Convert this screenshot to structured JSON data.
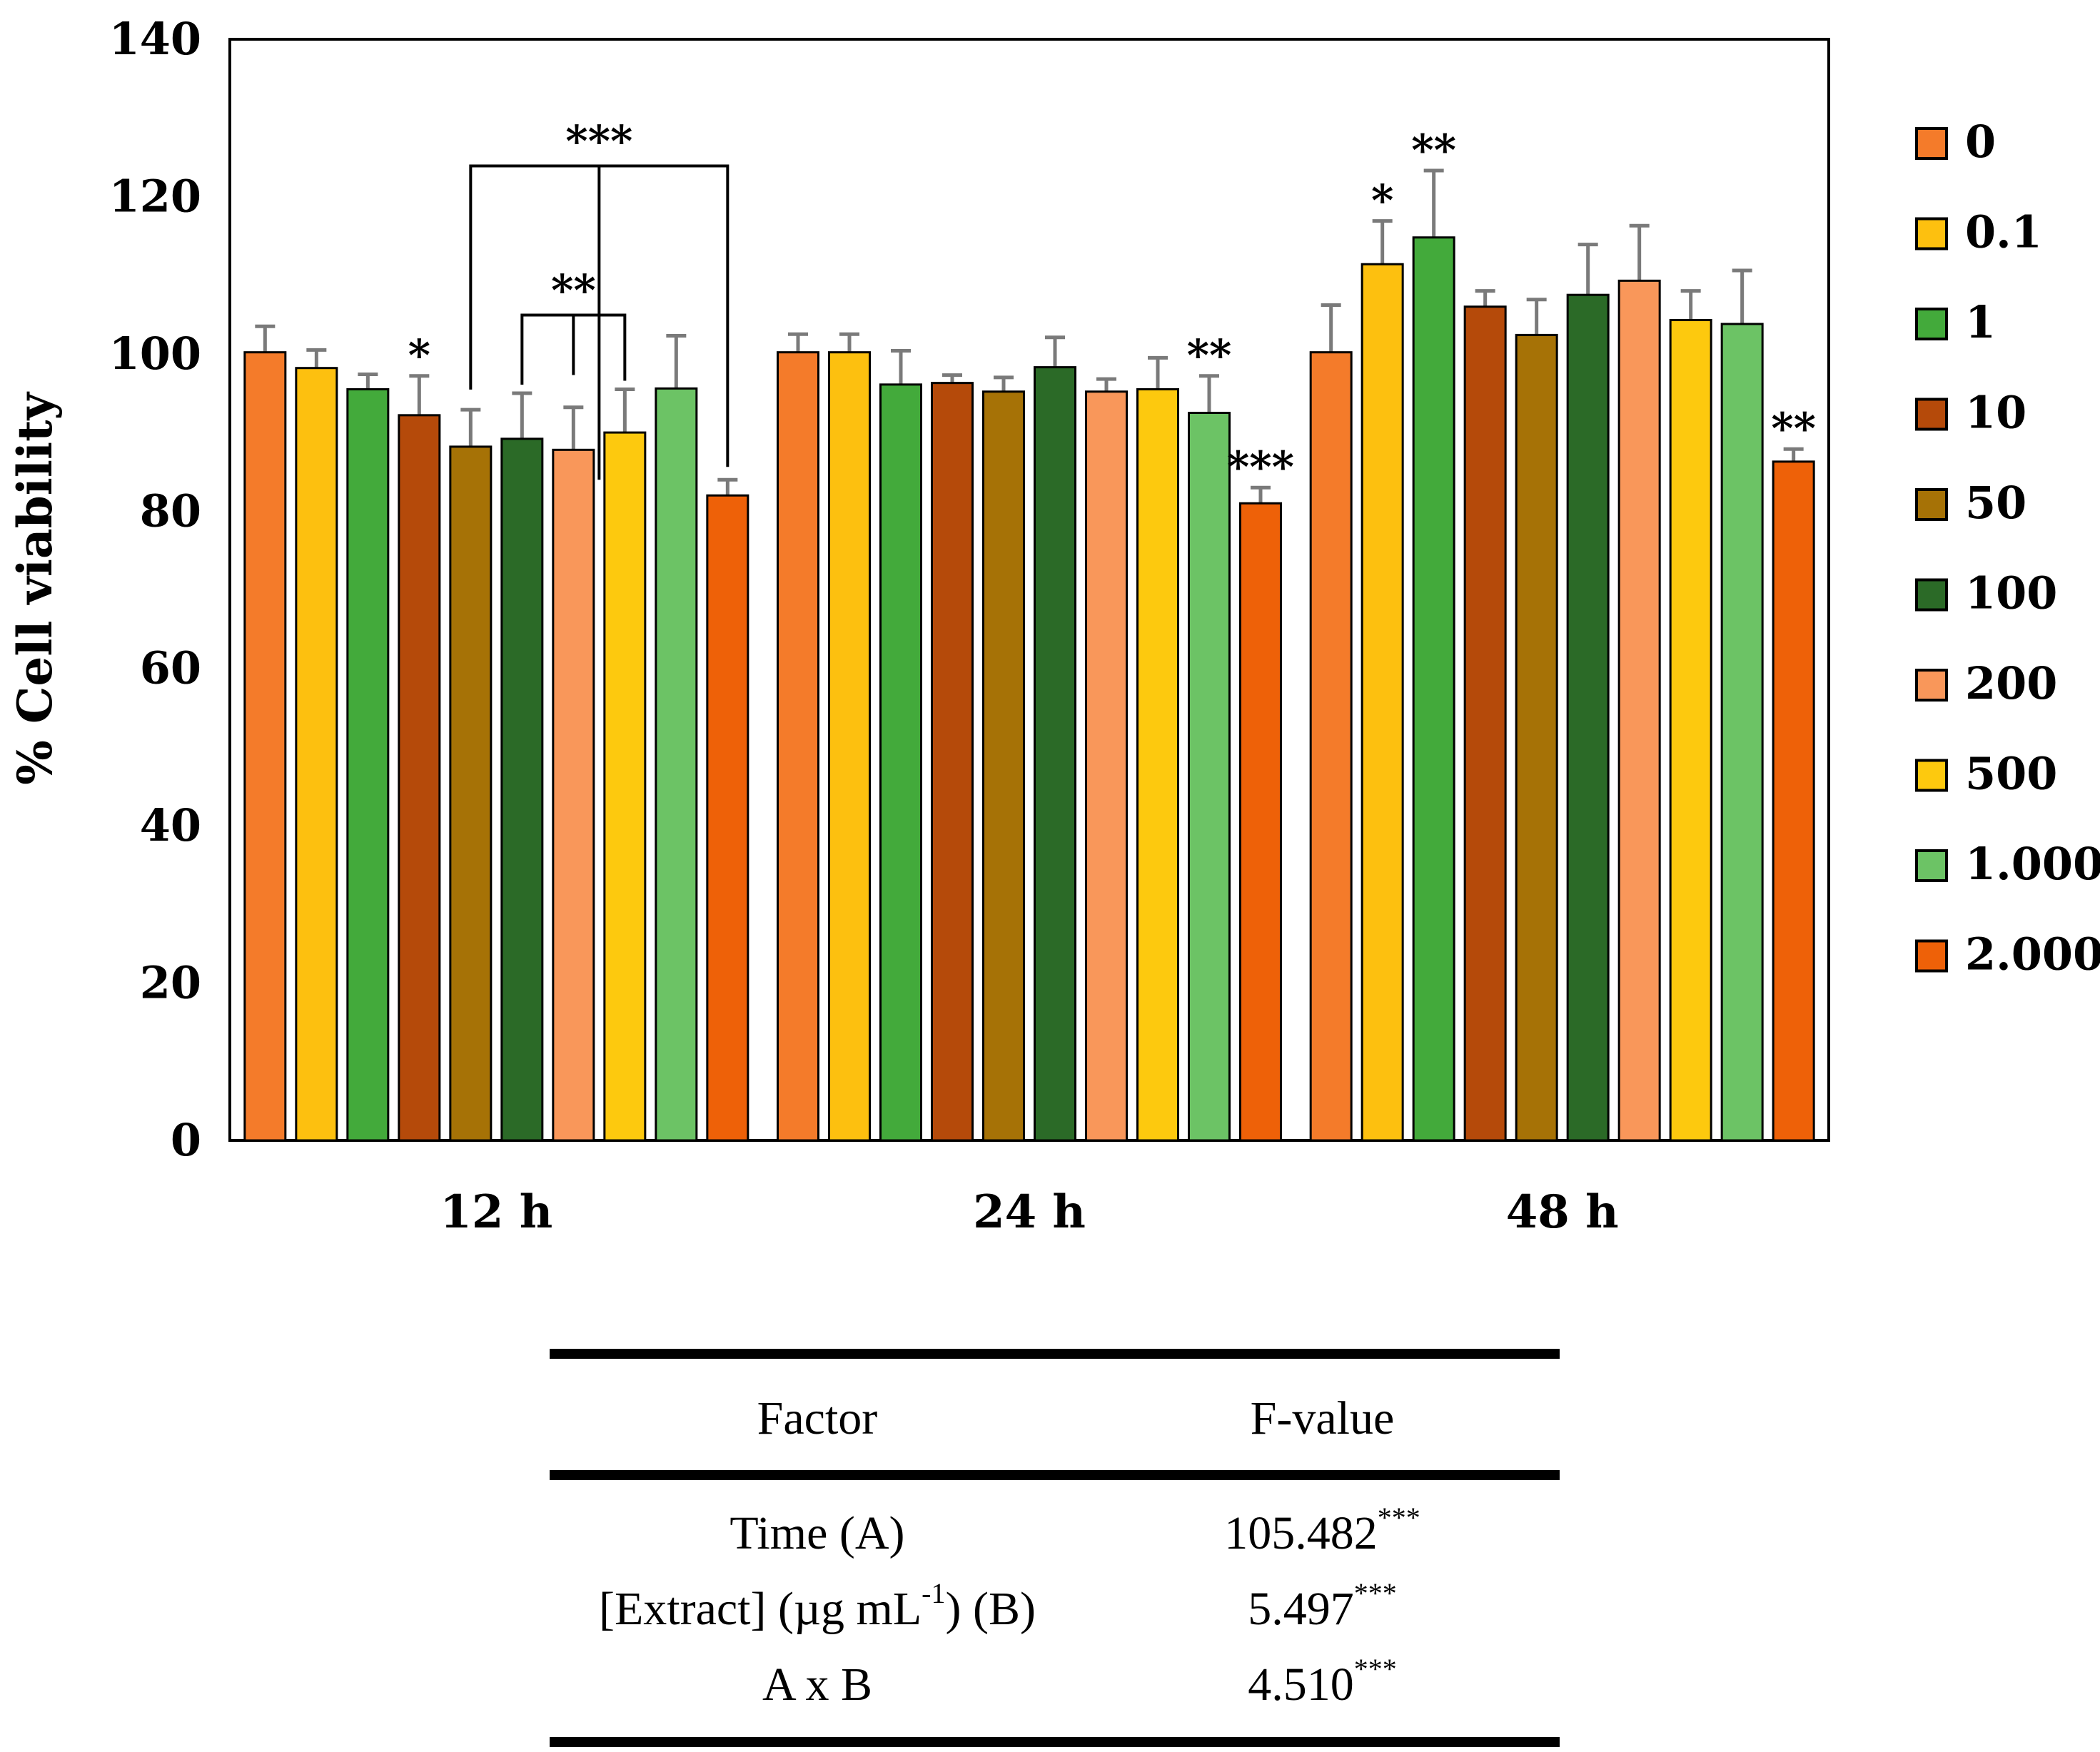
{
  "chart_data": {
    "type": "bar",
    "ylabel": "% Cell viability",
    "ylim": [
      0,
      140
    ],
    "yticks": [
      0,
      20,
      40,
      60,
      80,
      100,
      120,
      140
    ],
    "categories": [
      "12 h",
      "24 h",
      "48 h"
    ],
    "legend_position": "right",
    "series": [
      {
        "name": "0",
        "color": "#F47B2A",
        "values": [
          100.2,
          100.2,
          100.2
        ],
        "errors": [
          3.3,
          2.3,
          6.0
        ]
      },
      {
        "name": "0.1",
        "color": "#FDC00F",
        "values": [
          98.2,
          100.2,
          111.4
        ],
        "errors": [
          2.3,
          2.3,
          5.5
        ]
      },
      {
        "name": "1",
        "color": "#43AA3B",
        "values": [
          95.5,
          96.1,
          114.8
        ],
        "errors": [
          1.9,
          4.3,
          8.5
        ]
      },
      {
        "name": "10",
        "color": "#B54A0A",
        "values": [
          92.2,
          96.3,
          106.0
        ],
        "errors": [
          5.0,
          1.0,
          2.0
        ]
      },
      {
        "name": "50",
        "color": "#A67206",
        "values": [
          88.2,
          95.2,
          102.4
        ],
        "errors": [
          4.7,
          1.8,
          4.5
        ]
      },
      {
        "name": "100",
        "color": "#2B6A27",
        "values": [
          89.2,
          98.3,
          107.5
        ],
        "errors": [
          5.8,
          3.8,
          6.4
        ]
      },
      {
        "name": "200",
        "color": "#F9975A",
        "values": [
          87.8,
          95.2,
          109.3
        ],
        "errors": [
          5.4,
          1.6,
          7.0
        ]
      },
      {
        "name": "500",
        "color": "#FDC90E",
        "values": [
          90.0,
          95.5,
          104.3
        ],
        "errors": [
          5.5,
          4.0,
          3.7
        ]
      },
      {
        "name": "1.000",
        "color": "#6CC365",
        "values": [
          95.6,
          92.5,
          103.8
        ],
        "errors": [
          6.7,
          4.7,
          6.8
        ]
      },
      {
        "name": "2.000",
        "color": "#EE6108",
        "values": [
          82.0,
          81.0,
          86.3
        ],
        "errors": [
          2.0,
          2.0,
          1.6
        ]
      }
    ],
    "significance": [
      {
        "category": 0,
        "series": 3,
        "label": "*"
      },
      {
        "category": 1,
        "series": 8,
        "label": "**"
      },
      {
        "category": 1,
        "series": 9,
        "label": "***"
      },
      {
        "category": 2,
        "series": 1,
        "label": "*"
      },
      {
        "category": 2,
        "series": 2,
        "label": "**"
      },
      {
        "category": 2,
        "series": 9,
        "label": "**"
      }
    ],
    "group_brackets": [
      {
        "category": 0,
        "from_series": 4,
        "to_series": 9,
        "label": "***"
      },
      {
        "category": 0,
        "from_series": 5,
        "to_series": 7,
        "label": "**"
      }
    ]
  },
  "anova_table": {
    "headers": {
      "factor": "Factor",
      "fvalue": "F-value"
    },
    "rows": [
      {
        "factor": "Time (A)",
        "value": "105.482",
        "sig": "***"
      },
      {
        "factor_pre": "[Extract] (µg mL",
        "factor_sup": "-1",
        "factor_post": ") (B)",
        "value": "5.497",
        "sig": "***"
      },
      {
        "factor": "A x B",
        "value": "4.510",
        "sig": "***"
      }
    ]
  }
}
